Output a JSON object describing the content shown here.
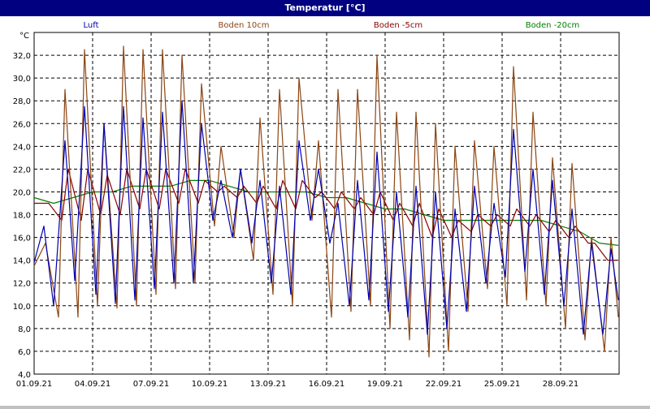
{
  "window": {
    "title": "Temperatur [°C]"
  },
  "colors": {
    "background": "#ffffff",
    "titlebar": "#000080",
    "grid": "#000000"
  },
  "chart_data": {
    "type": "line",
    "ylabel": "°C",
    "ylim": [
      4,
      34
    ],
    "xlim": [
      "2021-09-01",
      "2021-10-01"
    ],
    "yticks": [
      "4,0",
      "6,0",
      "8,0",
      "10,0",
      "12,0",
      "14,0",
      "16,0",
      "18,0",
      "20,0",
      "22,0",
      "24,0",
      "26,0",
      "28,0",
      "30,0",
      "32,0"
    ],
    "xticks": [
      "01.09.21",
      "04.09.21",
      "07.09.21",
      "10.09.21",
      "13.09.21",
      "16.09.21",
      "19.09.21",
      "22.09.21",
      "25.09.21",
      "28.09.21"
    ],
    "grid": true,
    "legend": "top",
    "series": [
      {
        "name": "Luft",
        "color": "#0000b0",
        "x": [
          "01.09 00:00",
          "01.09 12:00",
          "02.09 00:00",
          "02.09 14:00",
          "03.09 02:00",
          "03.09 14:00",
          "04.09 04:00",
          "04.09 14:00",
          "05.09 04:00",
          "05.09 14:00",
          "06.09 04:00",
          "06.09 14:00",
          "07.09 04:00",
          "07.09 14:00",
          "08.09 04:00",
          "08.09 14:00",
          "09.09 04:00",
          "09.09 14:00",
          "10.09 04:00",
          "10.09 14:00",
          "11.09 04:00",
          "11.09 14:00",
          "12.09 04:00",
          "12.09 14:00",
          "13.09 04:00",
          "13.09 14:00",
          "14.09 04:00",
          "14.09 14:00",
          "15.09 04:00",
          "15.09 14:00",
          "16.09 04:00",
          "16.09 14:00",
          "17.09 04:00",
          "17.09 14:00",
          "18.09 04:00",
          "18.09 14:00",
          "19.09 04:00",
          "19.09 14:00",
          "20.09 04:00",
          "20.09 14:00",
          "21.09 04:00",
          "21.09 14:00",
          "22.09 04:00",
          "22.09 14:00",
          "23.09 04:00",
          "23.09 14:00",
          "24.09 04:00",
          "24.09 14:00",
          "25.09 04:00",
          "25.09 14:00",
          "26.09 04:00",
          "26.09 14:00",
          "27.09 04:00",
          "27.09 14:00",
          "28.09 04:00",
          "28.09 14:00",
          "29.09 04:00",
          "29.09 14:00",
          "30.09 04:00",
          "30.09 14:00",
          "30.09 23:00"
        ],
        "y": [
          13.8,
          17.0,
          10.0,
          24.5,
          12.2,
          27.5,
          11.0,
          26.0,
          10.2,
          27.5,
          10.5,
          26.5,
          11.5,
          27.0,
          12.0,
          28.0,
          12.0,
          26.0,
          17.5,
          21.0,
          16.0,
          22.0,
          15.5,
          21.0,
          12.0,
          20.5,
          11.0,
          24.5,
          17.5,
          22.0,
          15.5,
          19.0,
          10.0,
          21.0,
          10.5,
          23.5,
          9.5,
          20.0,
          9.0,
          20.5,
          7.5,
          20.0,
          8.0,
          18.5,
          9.5,
          20.5,
          12.0,
          19.0,
          12.5,
          25.5,
          13.0,
          22.0,
          11.0,
          21.0,
          10.0,
          18.5,
          7.5,
          15.5,
          7.5,
          15.0,
          10.5
        ]
      },
      {
        "name": "Boden 10cm",
        "color": "#8b4513",
        "x": [
          "01.09 00:00",
          "01.09 14:00",
          "02.09 06:00",
          "02.09 14:00",
          "03.09 06:00",
          "03.09 14:00",
          "04.09 06:00",
          "04.09 14:00",
          "05.09 06:00",
          "05.09 14:00",
          "06.09 06:00",
          "06.09 14:00",
          "07.09 06:00",
          "07.09 14:00",
          "08.09 06:00",
          "08.09 14:00",
          "09.09 06:00",
          "09.09 14:00",
          "10.09 06:00",
          "10.09 14:00",
          "11.09 06:00",
          "11.09 14:00",
          "12.09 06:00",
          "12.09 14:00",
          "13.09 06:00",
          "13.09 14:00",
          "14.09 06:00",
          "14.09 14:00",
          "15.09 06:00",
          "15.09 14:00",
          "16.09 06:00",
          "16.09 14:00",
          "17.09 06:00",
          "17.09 14:00",
          "18.09 06:00",
          "18.09 14:00",
          "19.09 06:00",
          "19.09 14:00",
          "20.09 06:00",
          "20.09 14:00",
          "21.09 06:00",
          "21.09 14:00",
          "22.09 06:00",
          "22.09 14:00",
          "23.09 06:00",
          "23.09 14:00",
          "24.09 06:00",
          "24.09 14:00",
          "25.09 06:00",
          "25.09 14:00",
          "26.09 06:00",
          "26.09 14:00",
          "27.09 06:00",
          "27.09 14:00",
          "28.09 06:00",
          "28.09 14:00",
          "29.09 06:00",
          "29.09 14:00",
          "30.09 06:00",
          "30.09 14:00",
          "30.09 23:00"
        ],
        "y": [
          13.5,
          15.5,
          9.0,
          29.0,
          9.0,
          32.5,
          10.0,
          26.0,
          9.8,
          32.8,
          10.0,
          32.5,
          11.0,
          32.5,
          11.5,
          32.0,
          12.0,
          29.5,
          17.0,
          24.0,
          16.0,
          22.0,
          14.0,
          26.5,
          11.0,
          29.0,
          10.0,
          30.0,
          17.5,
          24.5,
          9.0,
          29.0,
          9.5,
          29.0,
          10.0,
          32.0,
          8.0,
          27.0,
          7.0,
          27.0,
          5.5,
          26.0,
          6.0,
          24.0,
          9.5,
          24.5,
          11.5,
          24.0,
          10.0,
          31.0,
          10.5,
          27.0,
          10.0,
          23.0,
          8.0,
          22.5,
          7.0,
          16.0,
          6.0,
          16.0,
          9.0
        ]
      },
      {
        "name": "Boden -5cm",
        "color": "#8b0000",
        "x": [
          "01.09 00:00",
          "01.09 18:00",
          "02.09 10:00",
          "02.09 18:00",
          "03.09 10:00",
          "03.09 18:00",
          "04.09 10:00",
          "04.09 18:00",
          "05.09 10:00",
          "05.09 18:00",
          "06.09 10:00",
          "06.09 18:00",
          "07.09 10:00",
          "07.09 18:00",
          "08.09 10:00",
          "08.09 18:00",
          "09.09 10:00",
          "09.09 18:00",
          "10.09 10:00",
          "10.09 18:00",
          "11.09 10:00",
          "11.09 18:00",
          "12.09 10:00",
          "12.09 18:00",
          "13.09 10:00",
          "13.09 18:00",
          "14.09 10:00",
          "14.09 18:00",
          "15.09 10:00",
          "15.09 18:00",
          "16.09 10:00",
          "16.09 18:00",
          "17.09 10:00",
          "17.09 18:00",
          "18.09 10:00",
          "18.09 18:00",
          "19.09 10:00",
          "19.09 18:00",
          "20.09 10:00",
          "20.09 18:00",
          "21.09 10:00",
          "21.09 18:00",
          "22.09 10:00",
          "22.09 18:00",
          "23.09 10:00",
          "23.09 18:00",
          "24.09 10:00",
          "24.09 18:00",
          "25.09 10:00",
          "25.09 18:00",
          "26.09 10:00",
          "26.09 18:00",
          "27.09 10:00",
          "27.09 18:00",
          "28.09 10:00",
          "28.09 18:00",
          "29.09 10:00",
          "29.09 18:00",
          "30.09 10:00",
          "30.09 23:00"
        ],
        "y": [
          19.0,
          19.0,
          17.5,
          22.0,
          17.5,
          22.0,
          18.0,
          21.5,
          18.0,
          22.0,
          18.5,
          22.0,
          18.5,
          22.0,
          19.0,
          22.0,
          19.0,
          21.0,
          20.0,
          20.5,
          19.5,
          20.5,
          19.0,
          20.5,
          18.5,
          21.0,
          18.5,
          21.0,
          19.5,
          20.0,
          18.5,
          20.0,
          18.5,
          19.5,
          18.0,
          20.0,
          17.5,
          19.0,
          17.0,
          19.0,
          16.0,
          18.5,
          16.0,
          17.5,
          16.5,
          18.0,
          17.0,
          18.0,
          17.0,
          18.5,
          17.0,
          18.0,
          16.5,
          17.5,
          16.0,
          17.0,
          15.5,
          15.5,
          14.0,
          14.0
        ]
      },
      {
        "name": "Boden -20cm",
        "color": "#008000",
        "x": [
          "01.09 00:00",
          "02.09 00:00",
          "03.09 00:00",
          "04.09 00:00",
          "05.09 00:00",
          "06.09 00:00",
          "07.09 00:00",
          "08.09 00:00",
          "09.09 00:00",
          "10.09 00:00",
          "11.09 00:00",
          "12.09 00:00",
          "13.09 00:00",
          "14.09 00:00",
          "15.09 00:00",
          "16.09 00:00",
          "17.09 00:00",
          "18.09 00:00",
          "19.09 00:00",
          "20.09 00:00",
          "21.09 00:00",
          "22.09 00:00",
          "23.09 00:00",
          "24.09 00:00",
          "25.09 00:00",
          "26.09 00:00",
          "27.09 00:00",
          "28.09 00:00",
          "29.09 00:00",
          "30.09 00:00",
          "30.09 23:00"
        ],
        "y": [
          19.5,
          19.0,
          19.5,
          20.0,
          20.0,
          20.5,
          20.5,
          20.5,
          21.0,
          21.0,
          20.5,
          20.0,
          20.0,
          20.0,
          20.0,
          19.5,
          19.5,
          19.0,
          18.5,
          18.5,
          18.0,
          17.5,
          17.5,
          17.5,
          17.5,
          17.5,
          17.5,
          17.0,
          16.5,
          15.5,
          15.3
        ]
      }
    ]
  }
}
